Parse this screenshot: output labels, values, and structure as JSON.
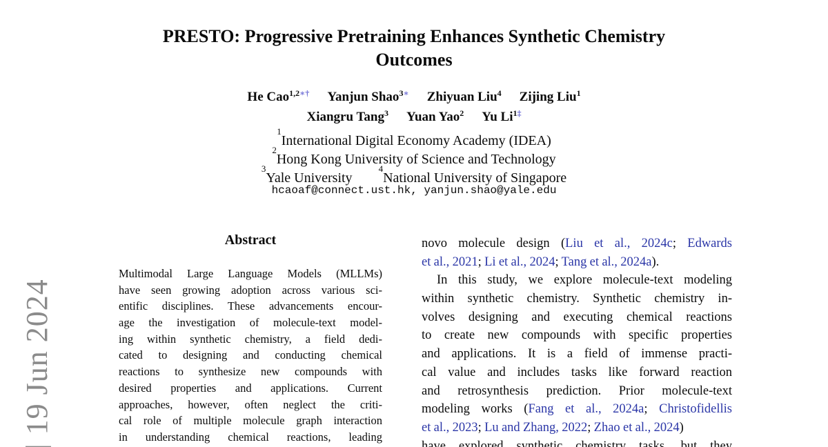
{
  "colors": {
    "text": "#0b0b0b",
    "link_blue": "#2b36a7",
    "footnote_mark_blue": "#6a6ad4",
    "watermark_gray": "#8b8b8b"
  },
  "watermark": {
    "text": "] 19 Jun 2024"
  },
  "title": {
    "line1": "PRESTO: Progressive Pretraining Enhances Synthetic Chemistry",
    "line2": "Outcomes"
  },
  "authors": {
    "lines": [
      [
        {
          "name": "He Cao",
          "sup": [
            {
              "t": "1,2",
              "mark": false
            },
            {
              "t": "∗†",
              "mark": true
            }
          ]
        },
        {
          "name": "Yanjun Shao",
          "sup": [
            {
              "t": "3",
              "mark": false
            },
            {
              "t": "∗",
              "mark": true
            }
          ]
        },
        {
          "name": "Zhiyuan Liu",
          "sup": [
            {
              "t": "4",
              "mark": false
            }
          ]
        },
        {
          "name": "Zijing Liu",
          "sup": [
            {
              "t": "1",
              "mark": false
            }
          ]
        }
      ],
      [
        {
          "name": "Xiangru Tang",
          "sup": [
            {
              "t": "3",
              "mark": false
            }
          ]
        },
        {
          "name": "Yuan Yao",
          "sup": [
            {
              "t": "2",
              "mark": false
            }
          ]
        },
        {
          "name": "Yu Li",
          "sup": [
            {
              "t": "1",
              "mark": false
            },
            {
              "t": "‡",
              "mark": true
            }
          ]
        }
      ]
    ]
  },
  "affiliations": [
    [
      {
        "sup": "1",
        "text": "International Digital Economy Academy (IDEA)"
      }
    ],
    [
      {
        "sup": "2",
        "text": "Hong Kong University of Science and Technology"
      }
    ],
    [
      {
        "sup": "3",
        "text": "Yale University"
      },
      {
        "sup": "4",
        "text": "National University of Singapore"
      }
    ]
  ],
  "emails": "hcaoaf@connect.ust.hk, yanjun.shao@yale.edu",
  "abstract": {
    "heading": "Abstract",
    "lines": [
      "Multimodal Large Language Models (MLLMs)",
      "have seen growing adoption across various sci-",
      "entific disciplines. These advancements encour-",
      "age the investigation of molecule-text model-",
      "ing within synthetic chemistry, a field dedi-",
      "cated to designing and conducting chemical",
      "reactions to synthesize new compounds with",
      "desired properties and applications. Current",
      "approaches, however, often neglect the criti-",
      "cal role of multiple molecule graph interaction",
      "in understanding chemical reactions, leading"
    ]
  },
  "intro": {
    "lines": [
      {
        "justify": true,
        "indent": false,
        "segments": [
          {
            "t": "novo molecule design (",
            "link": false
          },
          {
            "t": "Liu et al., 2024c",
            "link": true
          },
          {
            "t": "; ",
            "link": false
          },
          {
            "t": "Edwards",
            "link": true
          }
        ]
      },
      {
        "justify": false,
        "indent": false,
        "segments": [
          {
            "t": "et al., 2021",
            "link": true
          },
          {
            "t": "; ",
            "link": false
          },
          {
            "t": "Li et al., 2024",
            "link": true
          },
          {
            "t": "; ",
            "link": false
          },
          {
            "t": "Tang et al., 2024a",
            "link": true
          },
          {
            "t": ").",
            "link": false
          }
        ]
      },
      {
        "justify": true,
        "indent": true,
        "segments": [
          {
            "t": "In this study, we explore molecule-text modeling",
            "link": false
          }
        ]
      },
      {
        "justify": true,
        "indent": false,
        "segments": [
          {
            "t": "within synthetic chemistry. Synthetic chemistry in-",
            "link": false
          }
        ]
      },
      {
        "justify": true,
        "indent": false,
        "segments": [
          {
            "t": "volves designing and executing chemical reactions",
            "link": false
          }
        ]
      },
      {
        "justify": true,
        "indent": false,
        "segments": [
          {
            "t": "to create new compounds with specific properties",
            "link": false
          }
        ]
      },
      {
        "justify": true,
        "indent": false,
        "segments": [
          {
            "t": "and applications. It is a field of immense practi-",
            "link": false
          }
        ]
      },
      {
        "justify": true,
        "indent": false,
        "segments": [
          {
            "t": "cal value and includes tasks like forward reaction",
            "link": false
          }
        ]
      },
      {
        "justify": true,
        "indent": false,
        "segments": [
          {
            "t": "and retrosynthesis prediction. Prior molecule-text",
            "link": false
          }
        ]
      },
      {
        "justify": true,
        "indent": false,
        "segments": [
          {
            "t": "modeling works (",
            "link": false
          },
          {
            "t": "Fang et al., 2024a",
            "link": true
          },
          {
            "t": "; ",
            "link": false
          },
          {
            "t": "Christofidellis",
            "link": true
          }
        ]
      },
      {
        "justify": false,
        "indent": false,
        "segments": [
          {
            "t": "et al., 2023",
            "link": true
          },
          {
            "t": "; ",
            "link": false
          },
          {
            "t": "Lu and Zhang, 2022",
            "link": true
          },
          {
            "t": "; ",
            "link": false
          },
          {
            "t": "Zhao et al., 2024",
            "link": true
          },
          {
            "t": ")",
            "link": false
          }
        ]
      },
      {
        "justify": true,
        "indent": false,
        "segments": [
          {
            "t": "have explored synthetic chemistry tasks, but they",
            "link": false
          }
        ]
      }
    ]
  }
}
